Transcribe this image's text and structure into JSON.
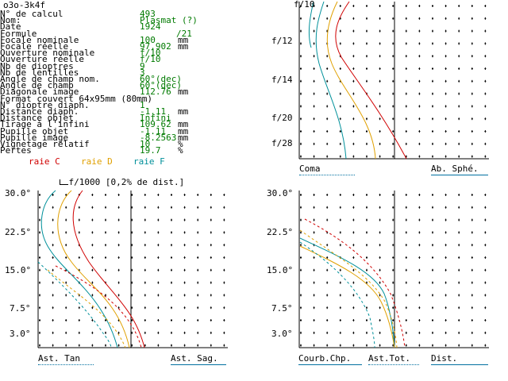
{
  "title": "o3o-3k4f",
  "params": [
    {
      "label": "N° de calcul",
      "value": "493",
      "unit": ""
    },
    {
      "label": "Nom:",
      "value": "Plasmat (?)",
      "unit": ""
    },
    {
      "label": "Date",
      "value": "1924",
      "unit": ""
    },
    {
      "label": "Formule",
      "value": "/21",
      "unit": ""
    },
    {
      "label": "Focale nominale",
      "value": "100",
      "unit": "mm"
    },
    {
      "label": "Focale réelle",
      "value": "97.902",
      "unit": "mm"
    },
    {
      "label": "Ouverture nominale",
      "value": "f/10",
      "unit": ""
    },
    {
      "label": "Ouverture réelle",
      "value": "f/10",
      "unit": ""
    },
    {
      "label": "Nb de dioptres",
      "value": "9",
      "unit": ""
    },
    {
      "label": "Nb de lentilles",
      "value": "3",
      "unit": ""
    },
    {
      "label": "Angle de champ nom.",
      "value": "60°(dec)",
      "unit": ""
    },
    {
      "label": "Angle de champ",
      "value": "60°(dec)",
      "unit": ""
    },
    {
      "label": "Diagonale image",
      "value": "112.76",
      "unit": "mm"
    },
    {
      "label": "Format couvert 64x95mm (80mm)",
      "value": "",
      "unit": ""
    },
    {
      "label": "N° dioptre diaph.",
      "value": "1",
      "unit": ""
    },
    {
      "label": "Distance diaph.",
      "value": "-1.11",
      "unit": "mm"
    },
    {
      "label": "Distance objet",
      "value": "Infini",
      "unit": ""
    },
    {
      "label": "Tirage à l'infini",
      "value": "109.62",
      "unit": "mm"
    },
    {
      "label": "Pupille objet",
      "value": "-1.11",
      "unit": "mm"
    },
    {
      "label": "Pupille image",
      "value": "-8.2563",
      "unit": "mm"
    },
    {
      "label": "Vignetage relatif",
      "value": "10",
      "unit": "%"
    },
    {
      "label": "Pertes",
      "value": "19.7",
      "unit": "%"
    }
  ],
  "scale_note": "f/1000 [0,2% de dist.]",
  "legend": {
    "c": "raie C",
    "d": "raie D",
    "f": "raie F"
  },
  "colors": {
    "c": "#d00000",
    "d": "#e0a000",
    "f": "#00909a",
    "value": "#007a00",
    "underline": "#0070a0"
  },
  "aperture_labels": [
    "f/10",
    "f/12",
    "f/14",
    "f/20",
    "f/28"
  ],
  "field_labels": [
    "30.0°",
    "22.5°",
    "15.0°",
    "7.5°",
    "3.0°"
  ],
  "panels": {
    "coma": {
      "left": "Coma",
      "right": "Ab. Sphé."
    },
    "astig": {
      "left": "Ast. Tan",
      "right": "Ast. Sag."
    },
    "field": {
      "left": "Courb.Chp.",
      "mid": "Ast.Tot.",
      "right": "Dist."
    }
  }
}
